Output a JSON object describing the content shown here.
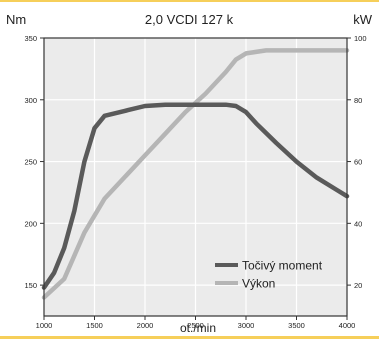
{
  "page": {
    "top_bar_color": "#f6cf5a",
    "bottom_bar_color": "#f6cf5a"
  },
  "chart_data": {
    "type": "line",
    "title": "2,0 VCDI 127 k",
    "left_unit": "Nm",
    "right_unit": "kW",
    "xlabel": "ot./min",
    "x_ticks": [
      "1000",
      "1500",
      "2000",
      "2500",
      "3000",
      "3500",
      "4000"
    ],
    "x_range": [
      1000,
      4000
    ],
    "y_left_ticks": [
      "150",
      "200",
      "250",
      "300",
      "350"
    ],
    "y_left_range": [
      125,
      350
    ],
    "y_right_ticks": [
      "20",
      "40",
      "60",
      "80",
      "100"
    ],
    "y_right_range": [
      10,
      100
    ],
    "grid": true,
    "legend_position": "bottom-right",
    "series": [
      {
        "name": "Točivý moment",
        "axis": "left",
        "color": "#5a5a5a",
        "x": [
          1000,
          1100,
          1200,
          1300,
          1400,
          1500,
          1600,
          1800,
          2000,
          2200,
          2500,
          2800,
          2900,
          3000,
          3100,
          3300,
          3500,
          3700,
          3900,
          4000
        ],
        "y": [
          148,
          160,
          180,
          210,
          250,
          277,
          287,
          291,
          295,
          296,
          296,
          296,
          295,
          290,
          281,
          265,
          250,
          237,
          227,
          222
        ]
      },
      {
        "name": "Výkon",
        "axis": "right",
        "color": "#b5b5b5",
        "x": [
          1000,
          1200,
          1400,
          1600,
          1800,
          2000,
          2200,
          2400,
          2600,
          2800,
          2900,
          3000,
          3200,
          3500,
          4000
        ],
        "y": [
          16,
          22,
          37,
          48,
          55,
          62,
          69,
          76,
          82,
          89,
          93,
          95,
          96,
          96,
          96
        ]
      }
    ]
  }
}
